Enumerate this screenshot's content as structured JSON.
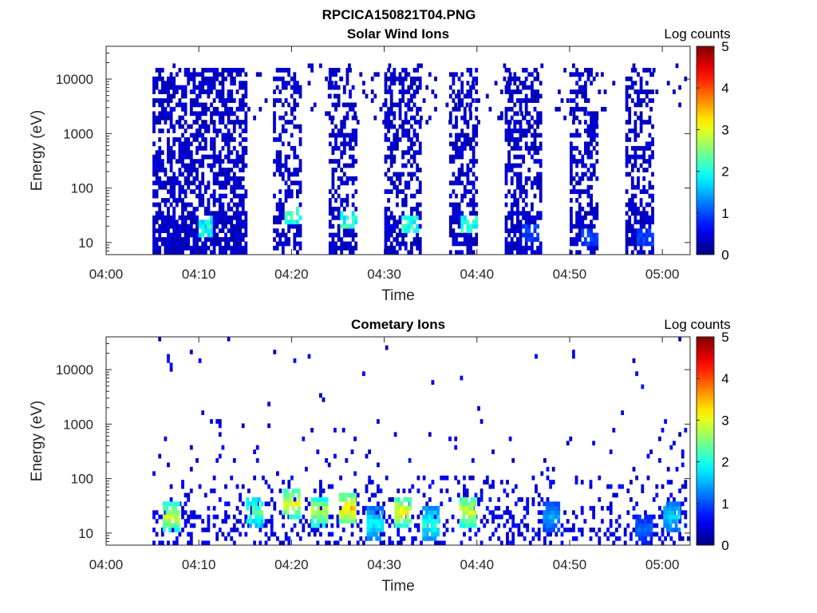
{
  "figure_title": "RPCICA150821T04.PNG",
  "chart_data": [
    {
      "type": "heatmap",
      "title": "Solar Wind Ions",
      "xlabel": "Time",
      "ylabel": "Energy (eV)",
      "x_scale": "time",
      "y_scale": "log",
      "xlim": [
        "04:00",
        "05:03"
      ],
      "ylim": [
        6,
        40000
      ],
      "x_ticks": [
        "04:00",
        "04:10",
        "04:20",
        "04:30",
        "04:40",
        "04:50",
        "05:00"
      ],
      "y_ticks": [
        10,
        100,
        1000,
        10000
      ],
      "y_tick_labels": [
        "10",
        "100",
        "1000",
        "10000"
      ],
      "colorbar": {
        "label": "Log counts",
        "min": 0,
        "max": 5,
        "ticks": [
          0,
          1,
          2,
          3,
          4,
          5
        ],
        "colormap": "jet"
      },
      "bursts": [
        {
          "start": "04:05",
          "end": "04:15",
          "emax": 15000,
          "density": 0.65,
          "peak_energy": 20,
          "peak_level": 2.1
        },
        {
          "start": "04:18",
          "end": "04:21",
          "emax": 15000,
          "density": 0.5,
          "peak_energy": 30,
          "peak_level": 2.3
        },
        {
          "start": "04:24",
          "end": "04:27",
          "emax": 15000,
          "density": 0.5,
          "peak_energy": 25,
          "peak_level": 2.2
        },
        {
          "start": "04:30",
          "end": "04:34",
          "emax": 15000,
          "density": 0.5,
          "peak_energy": 22,
          "peak_level": 2.2
        },
        {
          "start": "04:37",
          "end": "04:40",
          "emax": 15000,
          "density": 0.55,
          "peak_energy": 22,
          "peak_level": 2.2
        },
        {
          "start": "04:43",
          "end": "04:47",
          "emax": 15000,
          "density": 0.55,
          "peak_energy": 15,
          "peak_level": 1.0
        },
        {
          "start": "04:50",
          "end": "04:53",
          "emax": 15000,
          "density": 0.5,
          "peak_energy": 12,
          "peak_level": 1.0
        },
        {
          "start": "04:56",
          "end": "04:59",
          "emax": 15000,
          "density": 0.5,
          "peak_energy": 12,
          "peak_level": 1.0
        }
      ]
    },
    {
      "type": "heatmap",
      "title": "Cometary Ions",
      "xlabel": "Time",
      "ylabel": "Energy (eV)",
      "x_scale": "time",
      "y_scale": "log",
      "xlim": [
        "04:00",
        "05:03"
      ],
      "ylim": [
        6,
        40000
      ],
      "x_ticks": [
        "04:00",
        "04:10",
        "04:20",
        "04:30",
        "04:40",
        "04:50",
        "05:00"
      ],
      "y_ticks": [
        10,
        100,
        1000,
        10000
      ],
      "y_tick_labels": [
        "10",
        "100",
        "1000",
        "10000"
      ],
      "colorbar": {
        "label": "Log counts",
        "min": 0,
        "max": 5,
        "ticks": [
          0,
          1,
          2,
          3,
          4,
          5
        ],
        "colormap": "jet"
      },
      "hot_spots": [
        {
          "time": "04:07",
          "energy": 20,
          "level": 3.0
        },
        {
          "time": "04:16",
          "energy": 25,
          "level": 2.5
        },
        {
          "time": "04:20",
          "energy": 35,
          "level": 3.2
        },
        {
          "time": "04:23",
          "energy": 25,
          "level": 3.0
        },
        {
          "time": "04:26",
          "energy": 28,
          "level": 3.5
        },
        {
          "time": "04:29",
          "energy": 15,
          "level": 2.0
        },
        {
          "time": "04:32",
          "energy": 25,
          "level": 3.3
        },
        {
          "time": "04:35",
          "energy": 15,
          "level": 2.2
        },
        {
          "time": "04:39",
          "energy": 25,
          "level": 3.2
        },
        {
          "time": "04:48",
          "energy": 20,
          "level": 1.5
        },
        {
          "time": "04:58",
          "energy": 12,
          "level": 1.2
        },
        {
          "time": "05:01",
          "energy": 20,
          "level": 1.8
        }
      ]
    }
  ]
}
